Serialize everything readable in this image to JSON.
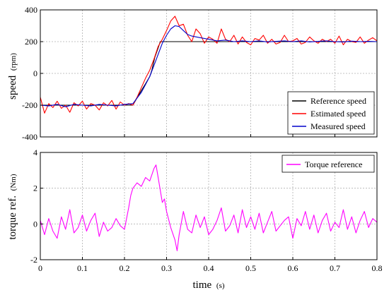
{
  "chart_data": [
    {
      "type": "line",
      "ylabel": "speed",
      "yunit": "(rpm)",
      "xlabel": "",
      "xlim": [
        0,
        0.8
      ],
      "ylim": [
        -400,
        400
      ],
      "xticks": [
        "0",
        "0.1",
        "0.2",
        "0.3",
        "0.4",
        "0.5",
        "0.6",
        "0.7",
        "0.8"
      ],
      "yticks": [
        "400",
        "200",
        "0",
        "-200",
        "-400"
      ],
      "grid": true,
      "legend_position": "bottom-right",
      "series": [
        {
          "name": "Reference speed",
          "color": "#000000",
          "x": [
            0,
            0.22,
            0.235,
            0.25,
            0.26,
            0.265,
            0.272,
            0.28,
            0.285,
            0.8
          ],
          "y": [
            -200,
            -200,
            -130,
            -65,
            -20,
            20,
            100,
            160,
            200,
            200
          ]
        },
        {
          "name": "Estimated speed",
          "color": "#ff0000",
          "x": [
            0,
            0.01,
            0.02,
            0.03,
            0.04,
            0.05,
            0.06,
            0.07,
            0.08,
            0.09,
            0.1,
            0.11,
            0.12,
            0.13,
            0.14,
            0.15,
            0.16,
            0.17,
            0.18,
            0.19,
            0.2,
            0.21,
            0.22,
            0.23,
            0.24,
            0.25,
            0.26,
            0.27,
            0.28,
            0.29,
            0.3,
            0.31,
            0.32,
            0.33,
            0.34,
            0.35,
            0.36,
            0.37,
            0.38,
            0.39,
            0.4,
            0.41,
            0.42,
            0.43,
            0.44,
            0.45,
            0.46,
            0.47,
            0.48,
            0.49,
            0.5,
            0.51,
            0.52,
            0.53,
            0.54,
            0.55,
            0.56,
            0.57,
            0.58,
            0.59,
            0.6,
            0.61,
            0.62,
            0.63,
            0.64,
            0.65,
            0.66,
            0.67,
            0.68,
            0.69,
            0.7,
            0.71,
            0.72,
            0.73,
            0.74,
            0.75,
            0.76,
            0.77,
            0.78,
            0.79,
            0.8
          ],
          "y": [
            -150,
            -250,
            -190,
            -215,
            -175,
            -220,
            -200,
            -245,
            -185,
            -205,
            -175,
            -225,
            -190,
            -200,
            -230,
            -185,
            -205,
            -170,
            -225,
            -180,
            -200,
            -190,
            -200,
            -150,
            -90,
            -30,
            20,
            90,
            170,
            215,
            270,
            330,
            360,
            300,
            310,
            240,
            200,
            280,
            250,
            190,
            230,
            215,
            190,
            280,
            215,
            200,
            240,
            185,
            230,
            195,
            180,
            220,
            210,
            240,
            190,
            215,
            185,
            195,
            240,
            200,
            205,
            220,
            185,
            195,
            230,
            205,
            190,
            215,
            200,
            215,
            190,
            235,
            180,
            215,
            200,
            195,
            230,
            190,
            210,
            225,
            205
          ]
        },
        {
          "name": "Measured speed",
          "color": "#0000cc",
          "x": [
            0,
            0.02,
            0.04,
            0.06,
            0.08,
            0.1,
            0.12,
            0.14,
            0.16,
            0.18,
            0.2,
            0.22,
            0.24,
            0.25,
            0.26,
            0.27,
            0.28,
            0.29,
            0.3,
            0.31,
            0.32,
            0.33,
            0.34,
            0.35,
            0.36,
            0.38,
            0.4,
            0.42,
            0.44,
            0.46,
            0.48,
            0.5,
            0.52,
            0.54,
            0.56,
            0.58,
            0.6,
            0.62,
            0.64,
            0.66,
            0.68,
            0.7,
            0.72,
            0.74,
            0.76,
            0.78,
            0.8
          ],
          "y": [
            -200,
            -205,
            -195,
            -210,
            -195,
            -200,
            -205,
            -195,
            -200,
            -205,
            -195,
            -190,
            -120,
            -70,
            -20,
            50,
            120,
            190,
            240,
            280,
            300,
            295,
            270,
            245,
            235,
            225,
            215,
            205,
            210,
            200,
            205,
            200,
            205,
            198,
            202,
            205,
            200,
            205,
            198,
            202,
            205,
            200,
            198,
            203,
            200,
            202,
            200
          ]
        }
      ]
    },
    {
      "type": "line",
      "ylabel": "torque ref.",
      "yunit": "(Nm)",
      "xlabel": "time",
      "xunit": "(s)",
      "xlim": [
        0,
        0.8
      ],
      "ylim": [
        -2,
        4
      ],
      "xticks": [
        "0",
        "0.1",
        "0.2",
        "0.3",
        "0.4",
        "0.5",
        "0.6",
        "0.7",
        "0.8"
      ],
      "yticks": [
        "4",
        "2",
        "0",
        "-2"
      ],
      "grid": true,
      "legend_position": "top-right",
      "series": [
        {
          "name": "Torque reference",
          "color": "#ff00ff",
          "x": [
            0,
            0.01,
            0.02,
            0.03,
            0.04,
            0.05,
            0.06,
            0.07,
            0.08,
            0.09,
            0.1,
            0.11,
            0.12,
            0.13,
            0.14,
            0.15,
            0.16,
            0.17,
            0.18,
            0.19,
            0.2,
            0.21,
            0.215,
            0.22,
            0.23,
            0.24,
            0.25,
            0.26,
            0.27,
            0.275,
            0.28,
            0.29,
            0.295,
            0.3,
            0.31,
            0.32,
            0.325,
            0.33,
            0.34,
            0.35,
            0.36,
            0.37,
            0.38,
            0.39,
            0.4,
            0.41,
            0.42,
            0.43,
            0.44,
            0.45,
            0.46,
            0.47,
            0.48,
            0.49,
            0.5,
            0.51,
            0.52,
            0.53,
            0.54,
            0.55,
            0.56,
            0.57,
            0.58,
            0.59,
            0.6,
            0.61,
            0.62,
            0.63,
            0.64,
            0.65,
            0.66,
            0.67,
            0.68,
            0.69,
            0.7,
            0.71,
            0.72,
            0.73,
            0.74,
            0.75,
            0.76,
            0.77,
            0.78,
            0.79,
            0.8
          ],
          "y": [
            0.2,
            -0.6,
            0.3,
            -0.4,
            -0.8,
            0.4,
            -0.3,
            0.8,
            -0.5,
            -0.2,
            0.5,
            -0.4,
            0.2,
            0.6,
            -0.7,
            0.1,
            -0.4,
            -0.2,
            0.3,
            -0.1,
            -0.3,
            0.9,
            1.6,
            2.0,
            2.3,
            2.1,
            2.6,
            2.4,
            3.1,
            3.3,
            2.6,
            1.2,
            1.4,
            0.7,
            -0.2,
            -0.9,
            -1.5,
            -0.6,
            0.7,
            -0.3,
            -0.5,
            0.5,
            -0.2,
            0.4,
            -0.6,
            -0.3,
            0.2,
            0.9,
            -0.4,
            -0.1,
            0.5,
            -0.5,
            0.8,
            -0.2,
            0.4,
            -0.3,
            0.6,
            -0.5,
            0.1,
            0.7,
            -0.4,
            -0.1,
            0.2,
            0.4,
            -0.8,
            0.3,
            -0.1,
            0.7,
            -0.3,
            0.5,
            -0.5,
            0.2,
            0.6,
            -0.4,
            0.1,
            -0.2,
            0.8,
            -0.3,
            0.4,
            -0.5,
            0.2,
            0.7,
            -0.2,
            0.3,
            0.1
          ]
        }
      ]
    }
  ]
}
